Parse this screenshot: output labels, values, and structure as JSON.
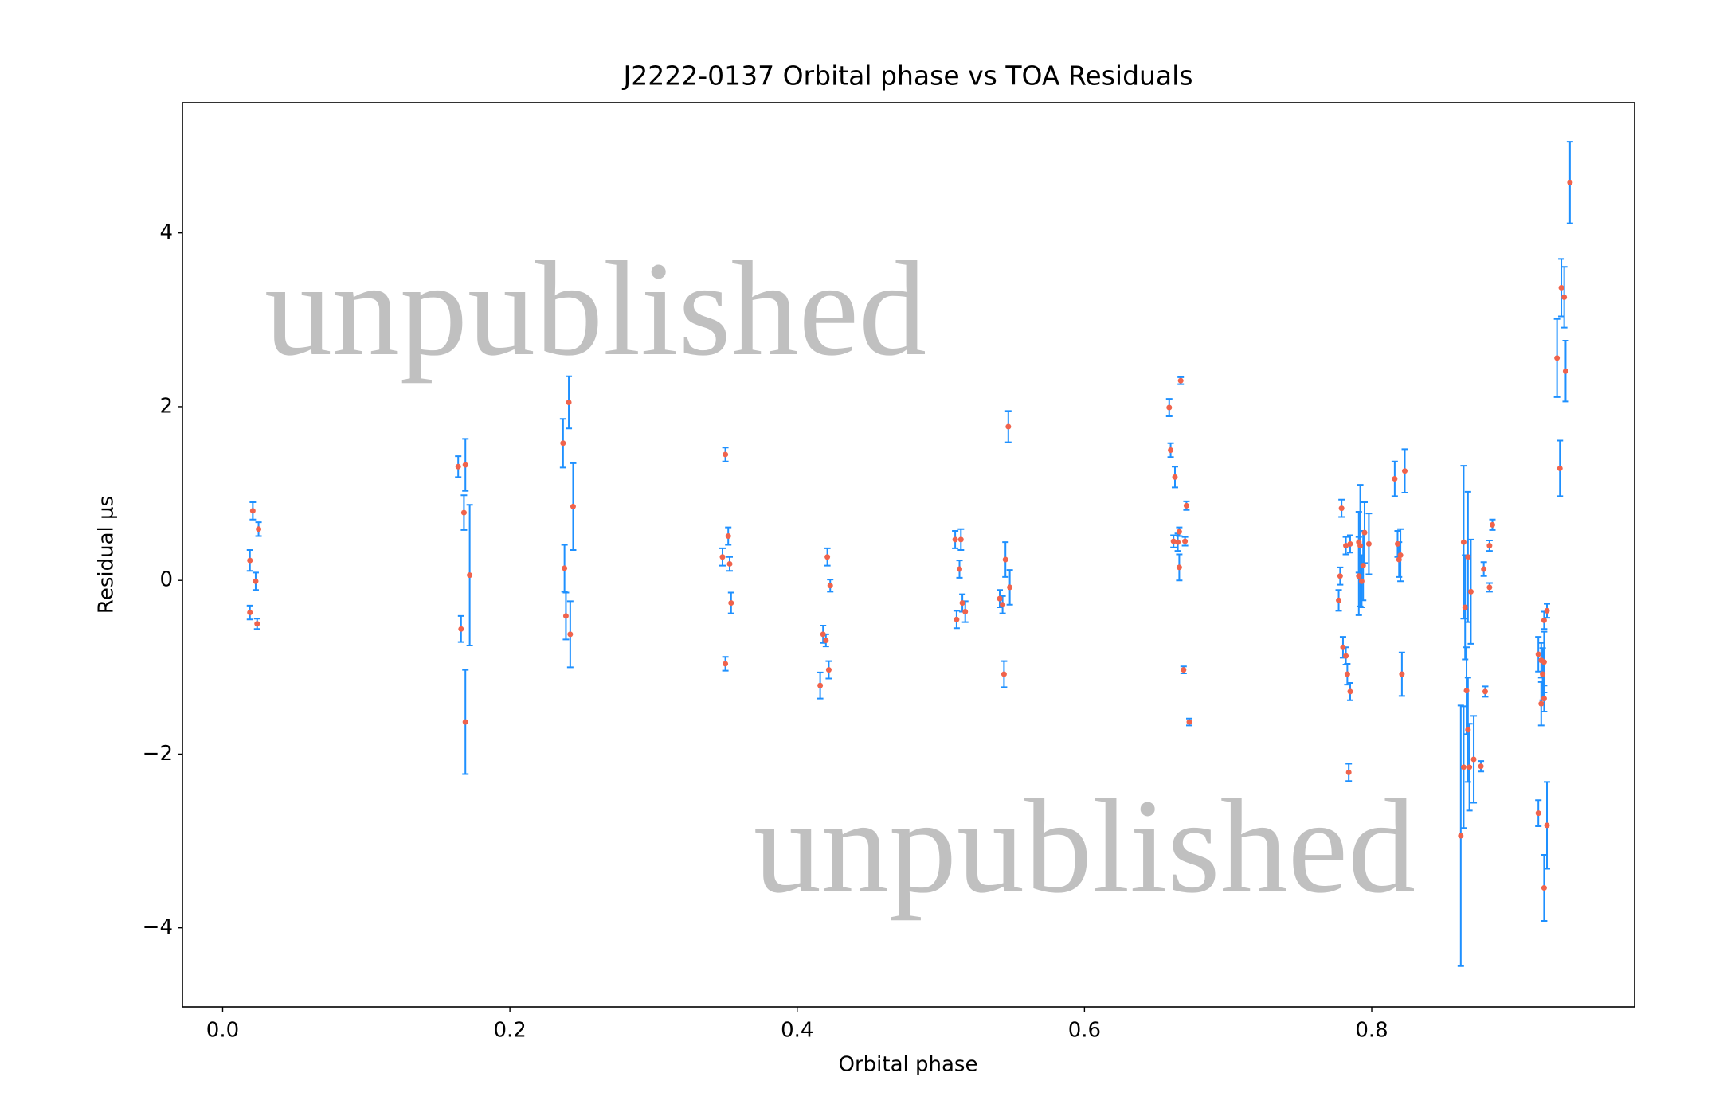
{
  "chart_data": {
    "type": "errorbar",
    "title": "J2222-0137 Orbital phase vs TOA Residuals",
    "xlabel": "Orbital phase",
    "ylabel": "Residual μs",
    "annotations": [
      "unpublished",
      "unpublished"
    ],
    "xlim": [
      -0.028,
      0.983
    ],
    "ylim": [
      -4.91,
      5.5
    ],
    "xticks": [
      {
        "value": 0,
        "label": "0.0"
      },
      0.2,
      0.4,
      0.6,
      0.8
    ],
    "yticks": [
      {
        "value": -4,
        "label": "−4"
      },
      {
        "value": -2,
        "label": "−2"
      },
      0,
      2,
      4
    ],
    "series": [
      {
        "color": "#f0634c",
        "error_color": "#1e90ff",
        "x": [
          0.019,
          0.021,
          0.023,
          0.019,
          0.024,
          0.025,
          0.164,
          0.169,
          0.168,
          0.172,
          0.166,
          0.169,
          0.237,
          0.241,
          0.244,
          0.238,
          0.239,
          0.242,
          0.35,
          0.352,
          0.348,
          0.353,
          0.354,
          0.35,
          0.421,
          0.423,
          0.418,
          0.42,
          0.422,
          0.416,
          0.51,
          0.514,
          0.513,
          0.511,
          0.515,
          0.517,
          0.547,
          0.545,
          0.548,
          0.541,
          0.543,
          0.544,
          0.659,
          0.667,
          0.66,
          0.663,
          0.666,
          0.671,
          0.662,
          0.665,
          0.67,
          0.666,
          0.669,
          0.673,
          0.779,
          0.778,
          0.777,
          0.78,
          0.782,
          0.783,
          0.785,
          0.784,
          0.782,
          0.785,
          0.791,
          0.792,
          0.791,
          0.793,
          0.794,
          0.795,
          0.798,
          0.816,
          0.823,
          0.818,
          0.82,
          0.819,
          0.821,
          0.864,
          0.865,
          0.867,
          0.869,
          0.866,
          0.867,
          0.864,
          0.868,
          0.871,
          0.862,
          0.878,
          0.879,
          0.876,
          0.882,
          0.884,
          0.882,
          0.938,
          0.932,
          0.934,
          0.929,
          0.935,
          0.931,
          0.922,
          0.92,
          0.916,
          0.918,
          0.92,
          0.919,
          0.92,
          0.918,
          0.916,
          0.922,
          0.92
        ],
        "values": [
          0.23,
          0.8,
          -0.01,
          -0.37,
          -0.5,
          0.59,
          1.31,
          1.33,
          0.78,
          0.06,
          -0.56,
          -1.63,
          1.58,
          2.05,
          0.85,
          0.14,
          -0.41,
          -0.62,
          1.45,
          0.51,
          0.27,
          0.19,
          -0.26,
          -0.96,
          0.27,
          -0.06,
          -0.62,
          -0.69,
          -1.03,
          -1.21,
          0.47,
          0.47,
          0.13,
          -0.45,
          -0.26,
          -0.36,
          1.77,
          0.24,
          -0.08,
          -0.21,
          -0.28,
          -1.08,
          1.99,
          2.3,
          1.5,
          1.19,
          0.56,
          0.86,
          0.45,
          0.44,
          0.45,
          0.15,
          -1.03,
          -1.63,
          0.83,
          0.05,
          -0.23,
          -0.77,
          -0.87,
          -1.08,
          -1.28,
          -2.21,
          0.4,
          0.42,
          0.44,
          0.4,
          0.05,
          -0.01,
          0.17,
          0.55,
          0.42,
          1.17,
          1.26,
          0.42,
          0.29,
          0.24,
          -1.08,
          0.44,
          -0.31,
          0.27,
          -0.13,
          -1.27,
          -1.72,
          -2.15,
          -2.15,
          -2.06,
          -2.94,
          0.13,
          -1.28,
          -2.14,
          0.4,
          0.64,
          -0.08,
          4.58,
          3.37,
          3.26,
          2.56,
          2.41,
          1.29,
          -0.35,
          -0.46,
          -0.85,
          -0.92,
          -0.94,
          -1.08,
          -1.36,
          -1.42,
          -2.68,
          -2.82,
          -3.54
        ],
        "errors": [
          0.12,
          0.1,
          0.1,
          0.08,
          0.06,
          0.08,
          0.12,
          0.3,
          0.2,
          0.81,
          0.15,
          0.6,
          0.28,
          0.3,
          0.5,
          0.27,
          0.27,
          0.38,
          0.08,
          0.1,
          0.1,
          0.08,
          0.12,
          0.08,
          0.1,
          0.07,
          0.1,
          0.07,
          0.1,
          0.15,
          0.1,
          0.12,
          0.1,
          0.1,
          0.1,
          0.12,
          0.18,
          0.2,
          0.2,
          0.1,
          0.1,
          0.15,
          0.1,
          0.04,
          0.08,
          0.12,
          0.05,
          0.05,
          0.07,
          0.1,
          0.05,
          0.15,
          0.04,
          0.04,
          0.1,
          0.1,
          0.12,
          0.12,
          0.1,
          0.12,
          0.1,
          0.1,
          0.1,
          0.1,
          0.35,
          0.7,
          0.45,
          0.3,
          0.4,
          0.35,
          0.35,
          0.2,
          0.25,
          0.15,
          0.3,
          0.2,
          0.25,
          0.88,
          0.6,
          0.75,
          0.6,
          0.5,
          0.6,
          0.7,
          0.5,
          0.5,
          1.5,
          0.08,
          0.06,
          0.06,
          0.06,
          0.06,
          0.05,
          0.47,
          0.33,
          0.35,
          0.45,
          0.35,
          0.32,
          0.08,
          0.1,
          0.2,
          0.2,
          0.35,
          0.3,
          0.15,
          0.25,
          0.15,
          0.5,
          0.38
        ]
      }
    ]
  }
}
